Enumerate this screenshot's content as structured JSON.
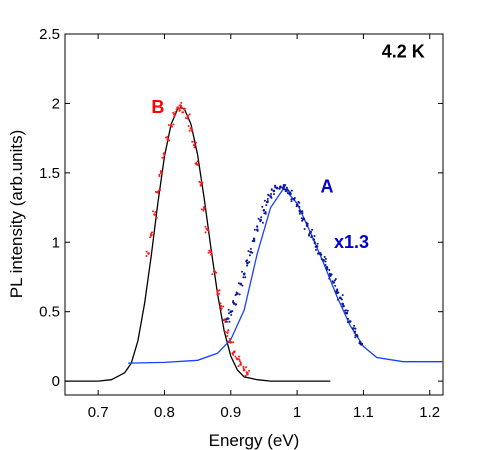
{
  "chart_data": {
    "type": "line",
    "title": "",
    "xlabel": "Energy (eV)",
    "ylabel": "PL intensity (arb.units)",
    "xlim": [
      0.65,
      1.22
    ],
    "ylim": [
      -0.1,
      2.5
    ],
    "xticks": [
      0.7,
      0.8,
      0.9,
      1.0,
      1.1,
      1.2
    ],
    "xtick_labels": [
      "0.7",
      "0.8",
      "0.9",
      "1",
      "1.1",
      "1.2"
    ],
    "yticks": [
      0,
      0.5,
      1,
      1.5,
      2,
      2.5
    ],
    "ytick_labels": [
      "0",
      "0.5",
      "1",
      "1.5",
      "2",
      "2.5"
    ],
    "grid": false,
    "annotations": [
      {
        "text": "4.2 K",
        "x": 1.16,
        "y": 2.33,
        "color": "#000000"
      },
      {
        "text": "B",
        "x": 0.79,
        "y": 1.93,
        "color": "#ff0000"
      },
      {
        "text": "A",
        "x": 1.045,
        "y": 1.36,
        "color": "#0000cc"
      },
      {
        "text": "x1.3",
        "x": 1.082,
        "y": 0.96,
        "color": "#0000cc"
      }
    ],
    "series": [
      {
        "kind": "fit-line",
        "color": "#000000",
        "x": [
          0.65,
          0.7,
          0.72,
          0.74,
          0.75,
          0.76,
          0.77,
          0.78,
          0.79,
          0.8,
          0.81,
          0.82,
          0.825,
          0.83,
          0.84,
          0.85,
          0.86,
          0.87,
          0.88,
          0.89,
          0.9,
          0.91,
          0.92,
          0.94,
          0.96,
          1.0,
          1.05
        ],
        "y": [
          0.0,
          0.0,
          0.01,
          0.06,
          0.13,
          0.29,
          0.56,
          0.9,
          1.28,
          1.62,
          1.85,
          1.96,
          1.97,
          1.96,
          1.85,
          1.63,
          1.31,
          0.96,
          0.63,
          0.36,
          0.18,
          0.08,
          0.03,
          0.01,
          0.0,
          0.0,
          0.0
        ]
      },
      {
        "kind": "fit-line",
        "color": "#1a40ff",
        "x": [
          0.745,
          0.8,
          0.85,
          0.88,
          0.9,
          0.92,
          0.94,
          0.96,
          0.98,
          1.0,
          1.02,
          1.04,
          1.06,
          1.08,
          1.1,
          1.12,
          1.16,
          1.22
        ],
        "y": [
          0.13,
          0.135,
          0.15,
          0.2,
          0.3,
          0.51,
          0.92,
          1.25,
          1.39,
          1.28,
          1.07,
          0.85,
          0.61,
          0.4,
          0.25,
          0.17,
          0.14,
          0.14
        ]
      },
      {
        "kind": "scatter",
        "color": "#ff1a1a",
        "x": [
          0.776,
          0.78,
          0.785,
          0.79,
          0.795,
          0.8,
          0.805,
          0.81,
          0.815,
          0.82,
          0.825,
          0.83,
          0.835,
          0.84,
          0.845,
          0.85,
          0.855,
          0.86,
          0.865,
          0.87,
          0.875,
          0.88,
          0.885,
          0.89,
          0.895,
          0.9,
          0.905,
          0.91,
          0.915,
          0.92,
          0.925
        ],
        "y": [
          0.92,
          1.05,
          1.2,
          1.36,
          1.5,
          1.63,
          1.74,
          1.84,
          1.92,
          1.97,
          1.98,
          1.96,
          1.91,
          1.82,
          1.7,
          1.56,
          1.41,
          1.25,
          1.09,
          0.93,
          0.79,
          0.65,
          0.54,
          0.44,
          0.35,
          0.28,
          0.21,
          0.16,
          0.12,
          0.08,
          0.05
        ]
      },
      {
        "kind": "scatter",
        "color": "#0a1a99",
        "x": [
          0.895,
          0.9,
          0.905,
          0.91,
          0.915,
          0.92,
          0.925,
          0.93,
          0.935,
          0.94,
          0.945,
          0.95,
          0.955,
          0.96,
          0.965,
          0.97,
          0.975,
          0.98,
          0.985,
          0.99,
          0.995,
          1.0,
          1.005,
          1.01,
          1.015,
          1.02,
          1.025,
          1.03,
          1.035,
          1.04,
          1.045,
          1.05,
          1.055,
          1.06,
          1.065,
          1.07,
          1.075,
          1.08,
          1.085,
          1.09,
          1.095
        ],
        "y": [
          0.45,
          0.5,
          0.56,
          0.63,
          0.7,
          0.77,
          0.85,
          0.93,
          1.01,
          1.09,
          1.16,
          1.23,
          1.29,
          1.33,
          1.37,
          1.39,
          1.4,
          1.4,
          1.38,
          1.35,
          1.31,
          1.27,
          1.22,
          1.17,
          1.12,
          1.07,
          1.02,
          0.97,
          0.92,
          0.87,
          0.82,
          0.76,
          0.71,
          0.65,
          0.6,
          0.54,
          0.49,
          0.43,
          0.38,
          0.33,
          0.28
        ]
      }
    ]
  }
}
